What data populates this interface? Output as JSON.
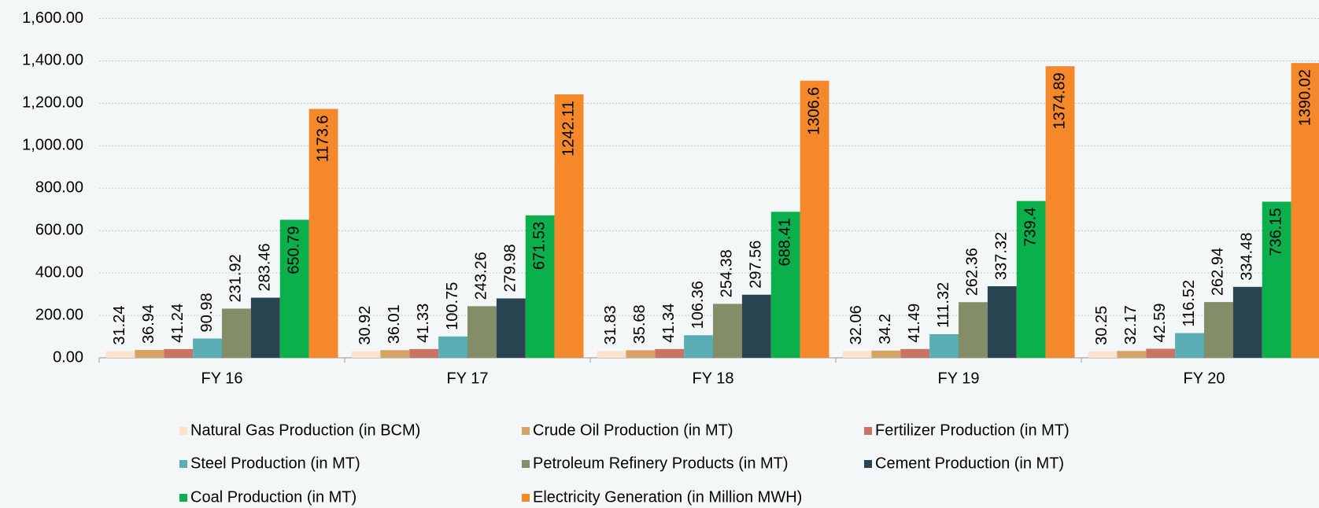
{
  "chart_data": {
    "type": "bar",
    "categories": [
      "FY 16",
      "FY 17",
      "FY 18",
      "FY 19",
      "FY 20"
    ],
    "series": [
      {
        "name": "Natural Gas Production (in BCM)",
        "color": "#fde2cd",
        "values": [
          31.24,
          30.92,
          31.83,
          32.06,
          30.25
        ]
      },
      {
        "name": "Crude Oil Production (in MT)",
        "color": "#d6a265",
        "values": [
          36.94,
          36.01,
          35.68,
          34.2,
          32.17
        ]
      },
      {
        "name": "Fertilizer Production (in MT)",
        "color": "#c97462",
        "values": [
          41.24,
          41.33,
          41.34,
          41.49,
          42.59
        ]
      },
      {
        "name": "Steel Production (in MT)",
        "color": "#5aadb4",
        "values": [
          90.98,
          100.75,
          106.36,
          111.32,
          116.52
        ]
      },
      {
        "name": "Petroleum Refinery Products (in MT)",
        "color": "#838e69",
        "values": [
          231.92,
          243.26,
          254.38,
          262.36,
          262.94
        ]
      },
      {
        "name": "Cement Production (in MT)",
        "color": "#2a4350",
        "values": [
          283.46,
          279.98,
          297.56,
          337.32,
          334.48
        ]
      },
      {
        "name": "Coal Production (in MT)",
        "color": "#0bb04c",
        "values": [
          650.79,
          671.53,
          688.41,
          739.4,
          736.15
        ]
      },
      {
        "name": "Electricity Generation (in Million MWH)",
        "color": "#f5882a",
        "values": [
          1173.6,
          1242.11,
          1306.6,
          1374.89,
          1390.02
        ]
      }
    ],
    "ylim": [
      0,
      1600
    ],
    "yticks": [
      {
        "value": 0,
        "label": "0.00"
      },
      {
        "value": 200,
        "label": "200.00"
      },
      {
        "value": 400,
        "label": "400.00"
      },
      {
        "value": 600,
        "label": "600.00"
      },
      {
        "value": 800,
        "label": "800.00"
      },
      {
        "value": 1000,
        "label": "1,000.00"
      },
      {
        "value": 1200,
        "label": "1,200.00"
      },
      {
        "value": 1400,
        "label": "1,400.00"
      },
      {
        "value": 1600,
        "label": "1,600.00"
      }
    ],
    "grid": true,
    "legend": "bottom"
  }
}
